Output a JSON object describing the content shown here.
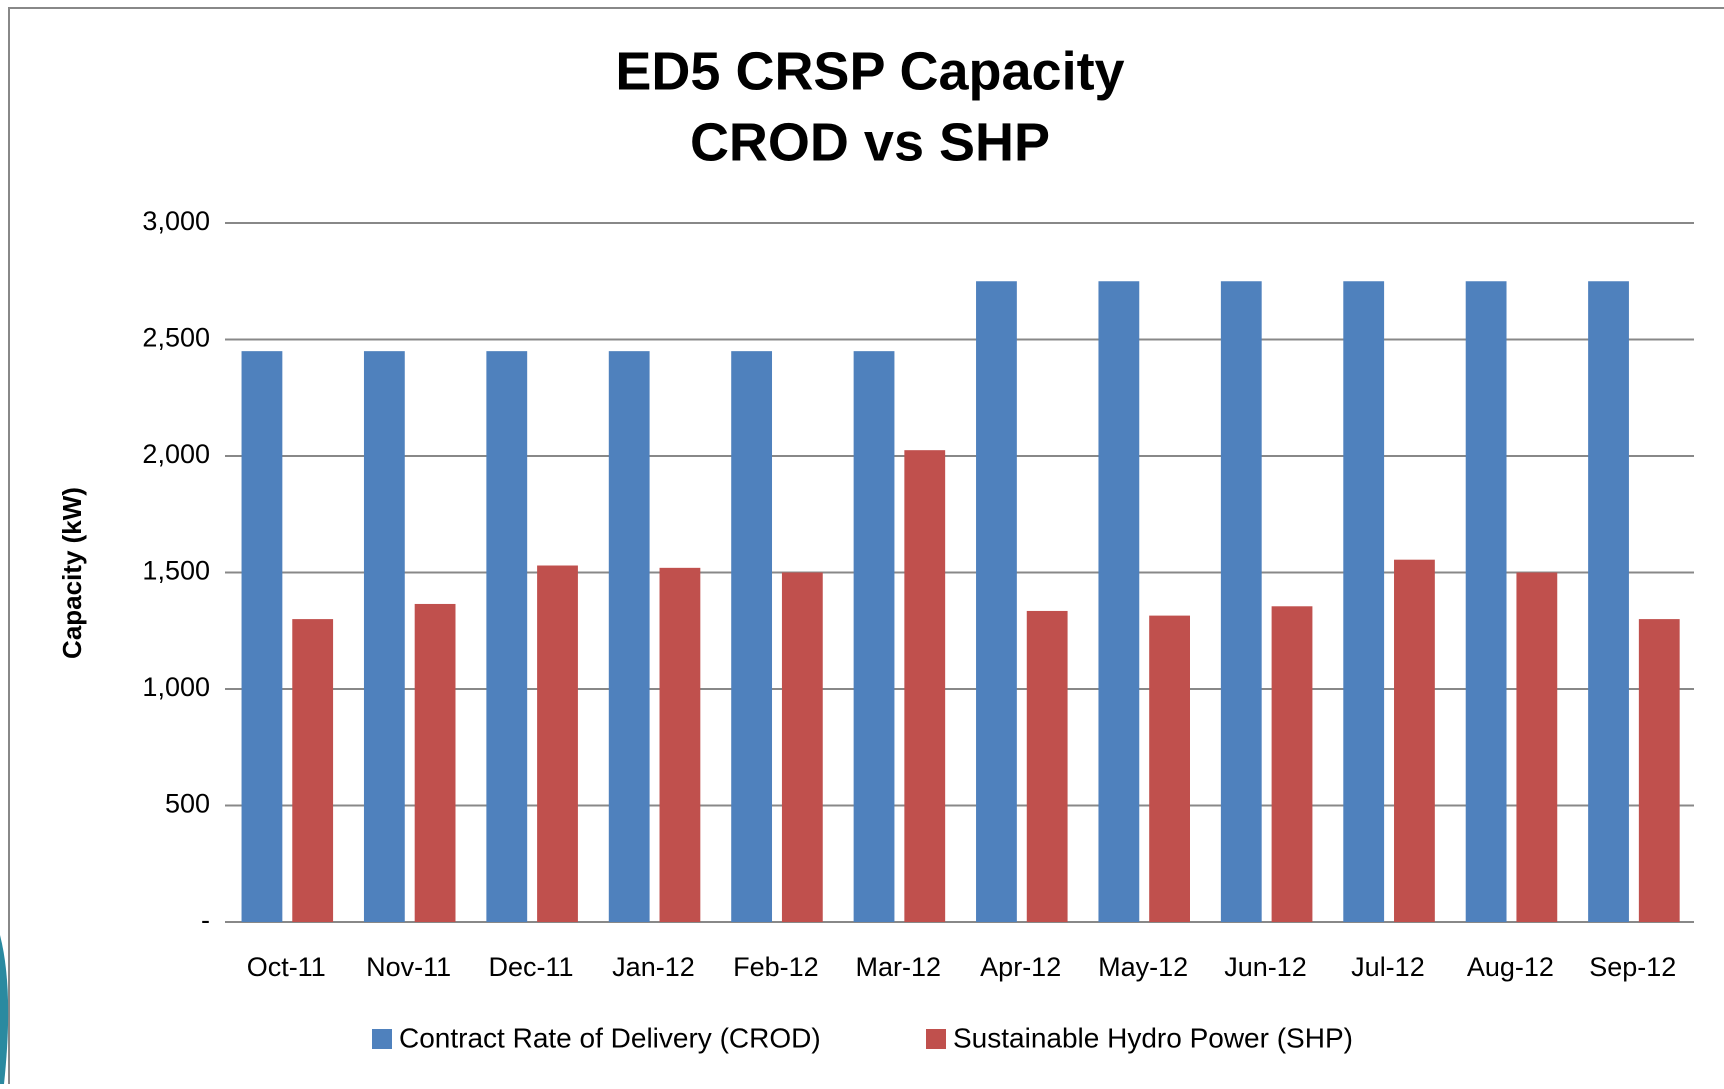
{
  "chart_data": {
    "type": "bar",
    "title": "ED5 CRSP Capacity",
    "subtitle": "CROD vs SHP",
    "y_label": "Capacity (kW)",
    "categories": [
      "Oct-11",
      "Nov-11",
      "Dec-11",
      "Jan-12",
      "Feb-12",
      "Mar-12",
      "Apr-12",
      "May-12",
      "Jun-12",
      "Jul-12",
      "Aug-12",
      "Sep-12"
    ],
    "series": [
      {
        "name": "Contract Rate of Delivery (CROD)",
        "color": "#4f81bd",
        "values": [
          2450,
          2450,
          2450,
          2450,
          2450,
          2450,
          2750,
          2750,
          2750,
          2750,
          2750,
          2750
        ]
      },
      {
        "name": "Sustainable Hydro Power (SHP)",
        "color": "#c0504d",
        "values": [
          1300,
          1365,
          1530,
          1520,
          1500,
          2025,
          1335,
          1315,
          1355,
          1555,
          1500,
          1300
        ]
      }
    ],
    "ylim": [
      0,
      3000
    ],
    "yticks": [
      {
        "value": 0,
        "label": "-"
      },
      500,
      {
        "value": 1000,
        "label": "1,000"
      },
      {
        "value": 1500,
        "label": "1,500"
      },
      {
        "value": 2000,
        "label": "2,000"
      },
      {
        "value": 2500,
        "label": "2,500"
      },
      {
        "value": 3000,
        "label": "3,000"
      }
    ],
    "grid": true,
    "legend": "bottom"
  }
}
